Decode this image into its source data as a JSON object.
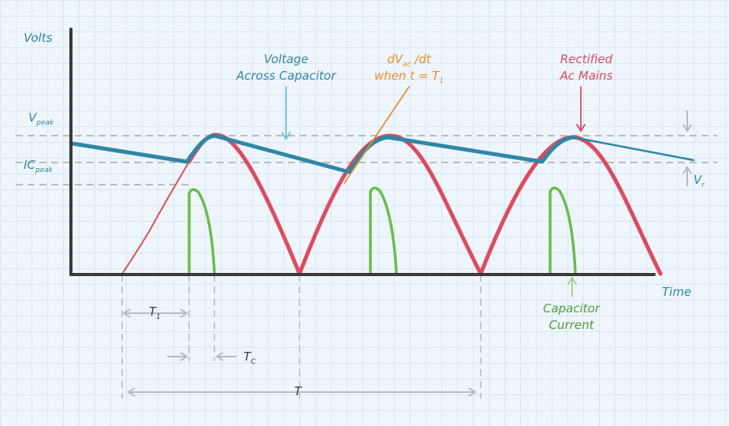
{
  "axes": {
    "y_label": "Volts",
    "x_label": "Time"
  },
  "levels": {
    "v_peak": {
      "main": "V",
      "sub": "peak"
    },
    "ic_peak": {
      "main": "IC",
      "sub": "peak"
    },
    "v_r": {
      "main": "V",
      "sub": "r"
    }
  },
  "annotations": {
    "capacitor_voltage": [
      "Voltage",
      "Across Capacitor"
    ],
    "slope": {
      "line1_main": "dV",
      "line1_sub": "ac",
      "line1_rest": " /dt",
      "line2_main": "when t = T",
      "line2_sub": "1"
    },
    "rectified": [
      "Rectified",
      "Ac Mains"
    ],
    "capacitor_current": [
      "Capacitor",
      "Current"
    ]
  },
  "intervals": {
    "t1": {
      "main": "T",
      "sub": "1"
    },
    "tc": {
      "main": "T",
      "sub": "C"
    },
    "t": "T"
  },
  "colors": {
    "axis": "#3a3a3a",
    "capacitor_voltage": "#2f86a6",
    "rectified": "#e04a5f",
    "capacitor_current": "#69be4b",
    "slope": "#e8912b",
    "guides": "#b7bcbf",
    "label_teal": "#2f86a6"
  }
}
